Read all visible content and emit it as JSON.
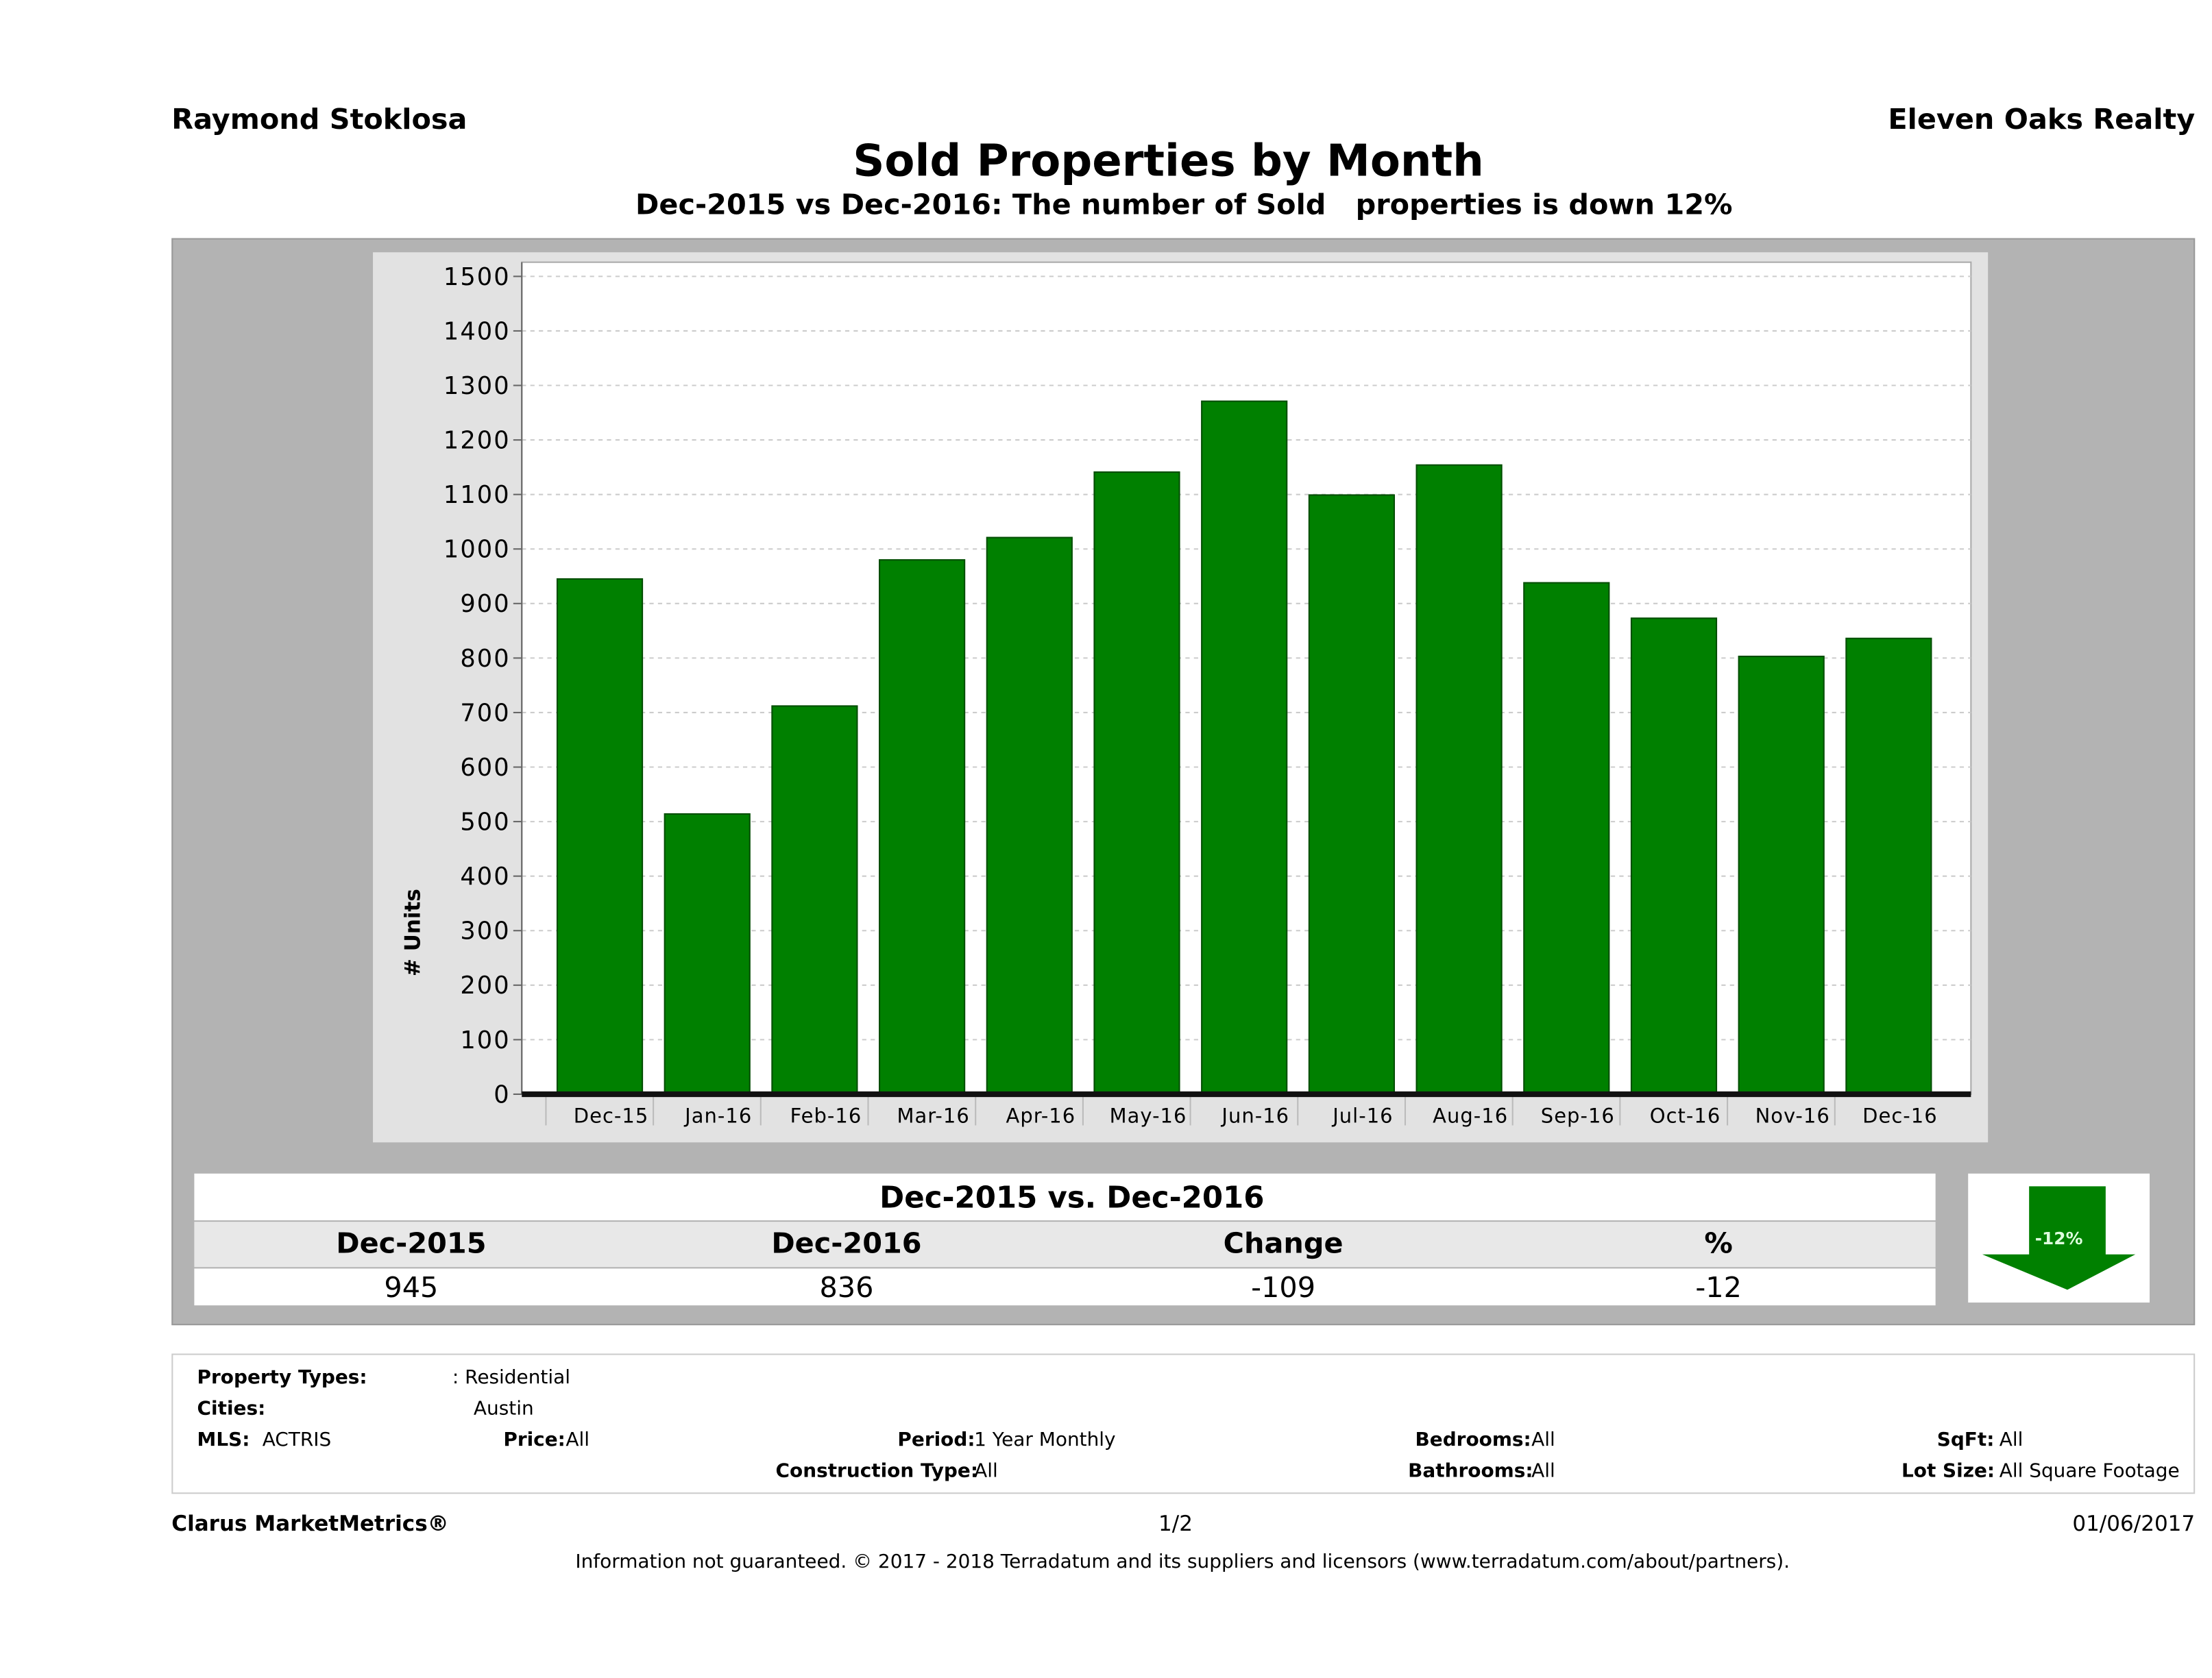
{
  "header": {
    "agent": "Raymond Stoklosa",
    "brand": "Eleven Oaks Realty",
    "title": "Sold Properties by Month",
    "subtitle": "Dec-2015 vs Dec-2016: The number of Sold   properties is down 12%"
  },
  "chart_data": {
    "type": "bar",
    "title": "Sold Properties by Month",
    "ylabel": "# Units",
    "xlabel": "",
    "ylim": [
      0,
      1500
    ],
    "yticks": [
      0,
      100,
      200,
      300,
      400,
      500,
      600,
      700,
      800,
      900,
      1000,
      1100,
      1200,
      1300,
      1400,
      1500
    ],
    "grid": true,
    "color": "#008000",
    "categories": [
      "Dec-15",
      "Jan-16",
      "Feb-16",
      "Mar-16",
      "Apr-16",
      "May-16",
      "Jun-16",
      "Jul-16",
      "Aug-16",
      "Sep-16",
      "Oct-16",
      "Nov-16",
      "Dec-16"
    ],
    "values": [
      945,
      514,
      712,
      980,
      1021,
      1141,
      1271,
      1099,
      1154,
      938,
      873,
      803,
      836
    ]
  },
  "summary": {
    "heading": "Dec-2015 vs. Dec-2016",
    "columns": [
      "Dec-2015",
      "Dec-2016",
      "Change",
      "%"
    ],
    "values": [
      "945",
      "836",
      "-109",
      "-12"
    ],
    "badge": "-12%",
    "badge_icon": "down-arrow-icon",
    "badge_color": "#008000"
  },
  "filters": {
    "property_types_label": "Property Types:",
    "property_types": ": Residential",
    "cities_label": "Cities:",
    "cities": "Austin",
    "mls_label": "MLS:",
    "mls": "ACTRIS",
    "price_label": "Price:",
    "price": "All",
    "period_label": "Period:",
    "period": "1 Year Monthly",
    "bedrooms_label": "Bedrooms:",
    "bedrooms": "All",
    "sqft_label": "SqFt:",
    "sqft": "All",
    "construction_label": "Construction Type:",
    "construction": "All",
    "bathrooms_label": "Bathrooms:",
    "bathrooms": "All",
    "lot_label": "Lot Size:",
    "lot": "All Square Footage"
  },
  "footer": {
    "product": "Clarus MarketMetrics®",
    "page": "1/2",
    "date": "01/06/2017",
    "disclaimer": "Information not guaranteed. © 2017 - 2018 Terradatum and its suppliers and licensors (www.terradatum.com/about/partners)."
  }
}
